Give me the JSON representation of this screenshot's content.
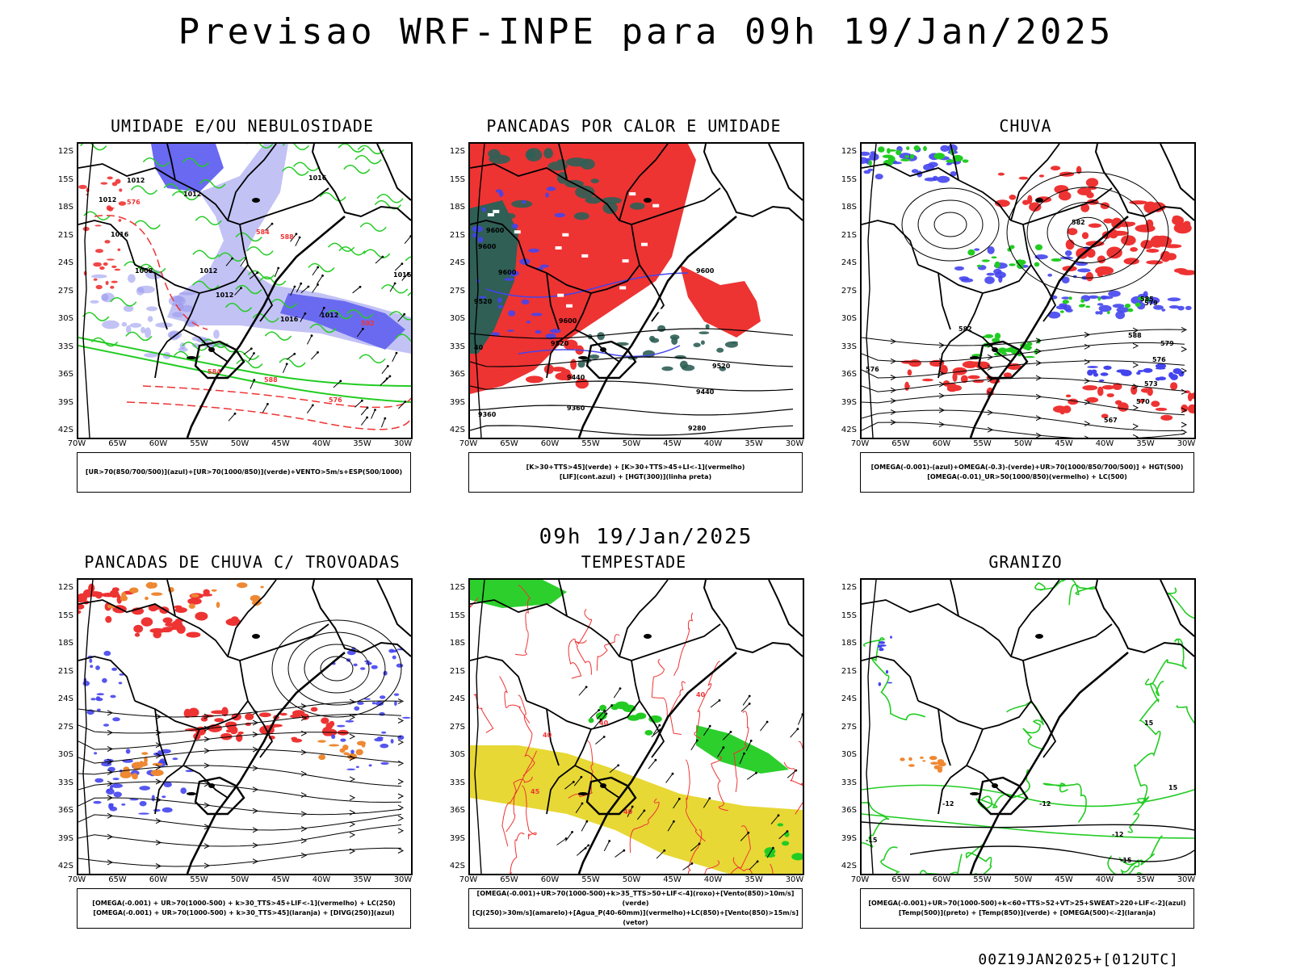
{
  "header": {
    "title": "Previsao WRF-INPE  para 09h 19/Jan/2025"
  },
  "mid_label": "09h 19/Jan/2025",
  "footer": "00Z19JAN2025+[012UTC]",
  "axes": {
    "lat_ticks": [
      "12S",
      "15S",
      "18S",
      "21S",
      "24S",
      "27S",
      "30S",
      "33S",
      "36S",
      "39S",
      "42S"
    ],
    "lon_ticks": [
      "70W",
      "65W",
      "60W",
      "55W",
      "50W",
      "45W",
      "40W",
      "35W",
      "30W"
    ]
  },
  "colors": {
    "blue": "#4444ee",
    "lightblue": "#9999ee",
    "green": "#22cc22",
    "red": "#ee3333",
    "darkteal": "#2f5f55",
    "yellow": "#e6d62a",
    "orange": "#ee8833",
    "black": "#000000"
  },
  "panels": [
    {
      "id": "umidade",
      "title": "UMIDADE E/OU NEBULOSIDADE",
      "legend_lines": [
        "[UR>70(850/700/500)](azul)+[UR>70(1000/850)](verde)+VENTO>5m/s+ESP(500/1000)"
      ]
    },
    {
      "id": "pancadas",
      "title": "PANCADAS POR CALOR E UMIDADE",
      "legend_lines": [
        "[K>30+TTS>45](verde) + [K>30+TTS>45+LI<-1](vermelho)",
        "[LIF](cont.azul) + [HGT(300)](linha preta)"
      ]
    },
    {
      "id": "chuva",
      "title": "CHUVA",
      "legend_lines": [
        "[OMEGA(-0.001)-(azul)+OMEGA(-0.3)-(verde)+UR>70(1000/850/700/500)] + HGT(500)",
        "[OMEGA(-0.01)_UR>50(1000/850)(vermelho) + LC(500)"
      ]
    },
    {
      "id": "trovoadas",
      "title": "PANCADAS DE CHUVA C/ TROVOADAS",
      "legend_lines": [
        "[OMEGA(-0.001) + UR>70(1000-500) + k>30_TTS>45+LIF<-1](vermelho) + LC(250)",
        "[OMEGA(-0.001) + UR>70(1000-500) + k>30_TTS>45](laranja) + [DIVG(250)](azul)"
      ]
    },
    {
      "id": "tempestade",
      "title": "TEMPESTADE",
      "legend_lines": [
        "[OMEGA(-0.001)+UR>70(1000-500)+k>35_TTS>50+LIF<-4](roxo)+[Vento(850)>10m/s](verde)",
        "[CJ(250)>30m/s](amarelo)+[Agua_P(40-60mm)](vermelho)+LC(850)+[Vento(850)>15m/s](vetor)"
      ]
    },
    {
      "id": "granizo",
      "title": "GRANIZO",
      "legend_lines": [
        "[OMEGA(-0.001)+UR>70(1000-500)+k<60+TTS>52+VT>25+SWEAT>220+LIF<-2](azul)",
        "[Temp(500)](preto) + [Temp(850)](verde) + [OMEGA(500)<-2](laranja)"
      ]
    }
  ],
  "contour_labels": {
    "umidade": [
      "1012",
      "1012",
      "1012",
      "1016",
      "1016",
      "1008",
      "1012",
      "1012",
      "1012",
      "1016",
      "1016",
      "576",
      "584",
      "588",
      "576",
      "584",
      "588",
      "592"
    ],
    "pancadas": [
      "9600",
      "9600",
      "9600",
      "9520",
      "9600",
      "9600",
      "9520",
      "9440",
      "9360",
      "9360",
      "9280",
      "9520",
      "9440",
      "40"
    ],
    "chuva": [
      "588",
      "582",
      "579",
      "576",
      "573",
      "570",
      "567",
      "576",
      "579",
      "585",
      "582"
    ],
    "granizo": [
      "-12",
      "-12",
      "-15",
      "-15",
      "15",
      "15",
      "-12"
    ],
    "tempestade": [
      "40",
      "40",
      "40",
      "45",
      "40"
    ]
  }
}
